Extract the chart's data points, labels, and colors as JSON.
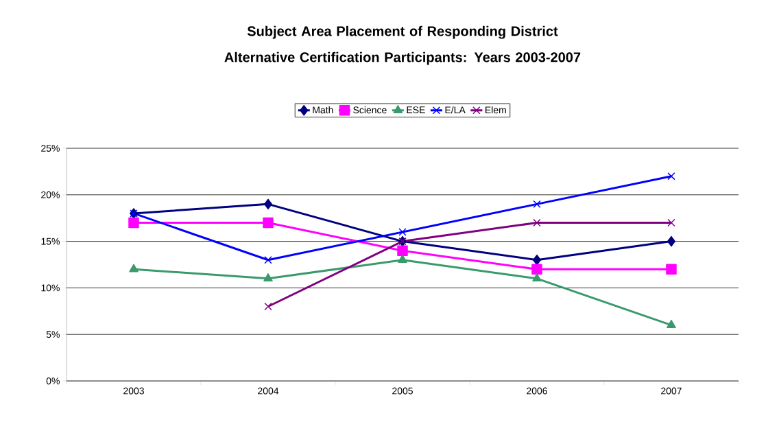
{
  "chart_data": {
    "type": "line",
    "title": "Subject Area Placement of Responding District Alternative Certification Participants: Years 2003-2007",
    "categories": [
      "2003",
      "2004",
      "2005",
      "2006",
      "2007"
    ],
    "series": [
      {
        "name": "Math",
        "color": "#000080",
        "marker": "diamond",
        "values": [
          18,
          19,
          15,
          13,
          15
        ]
      },
      {
        "name": "Science",
        "color": "#ff00ff",
        "marker": "square",
        "values": [
          17,
          17,
          14,
          12,
          12
        ]
      },
      {
        "name": "ESE",
        "color": "#3a9a6c",
        "marker": "triangle",
        "values": [
          12,
          11,
          13,
          11,
          6
        ]
      },
      {
        "name": "E/LA",
        "color": "#0000ff",
        "marker": "cross",
        "values": [
          18,
          13,
          16,
          19,
          22
        ]
      },
      {
        "name": "Elem",
        "color": "#800080",
        "marker": "cross",
        "values": [
          null,
          8,
          15,
          17,
          17
        ]
      }
    ],
    "ylim": [
      0,
      25
    ],
    "yticks": [
      {
        "value": 0,
        "label": "0%"
      },
      {
        "value": 5,
        "label": "5%"
      },
      {
        "value": 10,
        "label": "10%"
      },
      {
        "value": 15,
        "label": "15%"
      },
      {
        "value": 20,
        "label": "20%"
      },
      {
        "value": 25,
        "label": "25%"
      }
    ],
    "grid": "y",
    "legend": "top",
    "line_style": "solid"
  }
}
